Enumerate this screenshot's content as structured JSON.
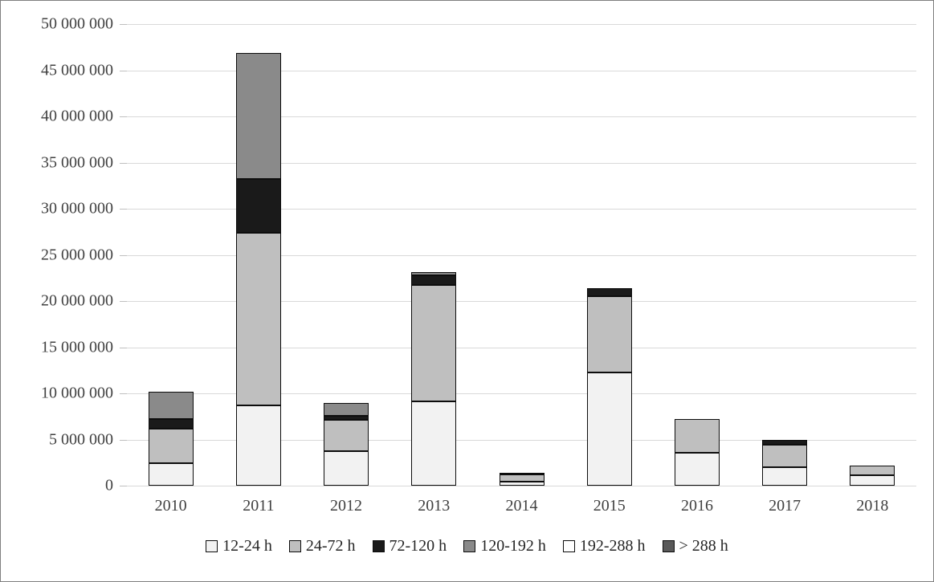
{
  "figure": {
    "background": "#ffffff",
    "border_color": "#7f7f7f",
    "gridline_color": "#d9d9d9",
    "axis_text_color": "#404040",
    "segment_outline_color": "#0d0d0d"
  },
  "chart_data": {
    "type": "bar",
    "stacked": true,
    "grid": true,
    "legend_position": "bottom",
    "title": "",
    "xlabel": "",
    "ylabel": "",
    "ylim": [
      0,
      50000000
    ],
    "ytick_step": 5000000,
    "ytick_labels": [
      "0",
      "5 000 000",
      "10 000 000",
      "15 000 000",
      "20 000 000",
      "25 000 000",
      "30 000 000",
      "35 000 000",
      "40 000 000",
      "45 000 000",
      "50 000 000"
    ],
    "categories": [
      "2010",
      "2011",
      "2012",
      "2013",
      "2014",
      "2015",
      "2016",
      "2017",
      "2018"
    ],
    "series": [
      {
        "name": "12-24 h",
        "color": "#f2f2f2",
        "values": [
          2400000,
          8700000,
          3700000,
          9100000,
          400000,
          12300000,
          3600000,
          2000000,
          1100000
        ]
      },
      {
        "name": "24-72 h",
        "color": "#bfbfbf",
        "values": [
          3800000,
          18700000,
          3400000,
          12600000,
          800000,
          8200000,
          3600000,
          2400000,
          1100000
        ]
      },
      {
        "name": "72-120 h",
        "color": "#1a1a1a",
        "values": [
          1000000,
          5800000,
          500000,
          1100000,
          200000,
          900000,
          0,
          550000,
          0
        ]
      },
      {
        "name": "120-192 h",
        "color": "#8a8a8a",
        "values": [
          3000000,
          13700000,
          1400000,
          300000,
          0,
          0,
          0,
          0,
          0
        ]
      },
      {
        "name": "192-288 h",
        "color": "#ffffff",
        "values": [
          0,
          0,
          0,
          0,
          0,
          0,
          0,
          0,
          0
        ]
      },
      {
        "name": "> 288 h",
        "color": "#595959",
        "values": [
          0,
          0,
          0,
          0,
          0,
          0,
          0,
          0,
          0
        ]
      }
    ],
    "totals": [
      10200000,
      46900000,
      9000000,
      23100000,
      1400000,
      21400000,
      7200000,
      4950000,
      2200000
    ]
  }
}
